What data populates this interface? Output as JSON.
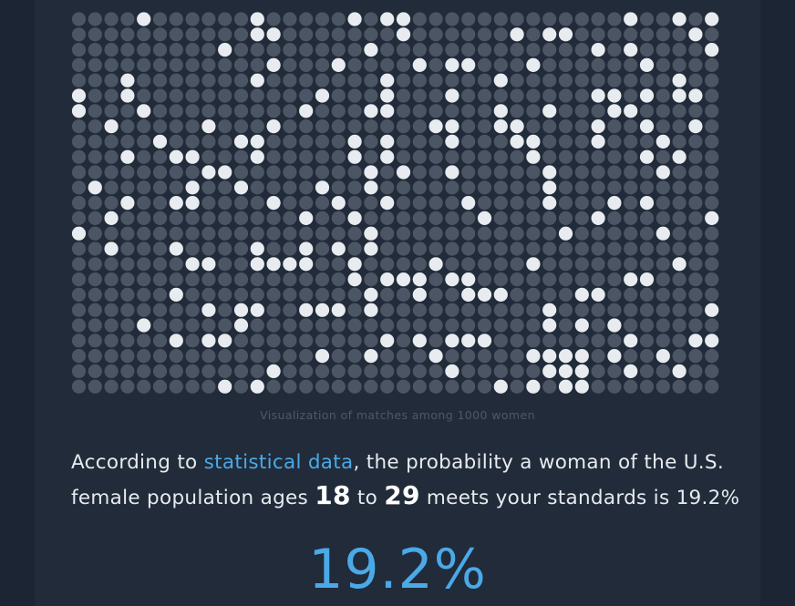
{
  "visualization": {
    "caption": "Visualization of matches among 1000 women",
    "total_women": 1000,
    "match_rate_percent": 19.2,
    "colors": {
      "match_dot": "#e8ebef",
      "nonmatch_dot": "#4b5563",
      "background": "#212b39"
    }
  },
  "statement": {
    "prefix": "According to ",
    "link_text": "statistical data",
    "middle": ", the probability a woman of the U.S. female population ages ",
    "age_min": "18",
    "to": " to ",
    "age_max": "29",
    "suffix": " meets your standards is 19.2%"
  },
  "result": {
    "percent_label": "19.2%"
  },
  "colors": {
    "accent": "#4ba9e7",
    "text": "#e7ebf0"
  }
}
